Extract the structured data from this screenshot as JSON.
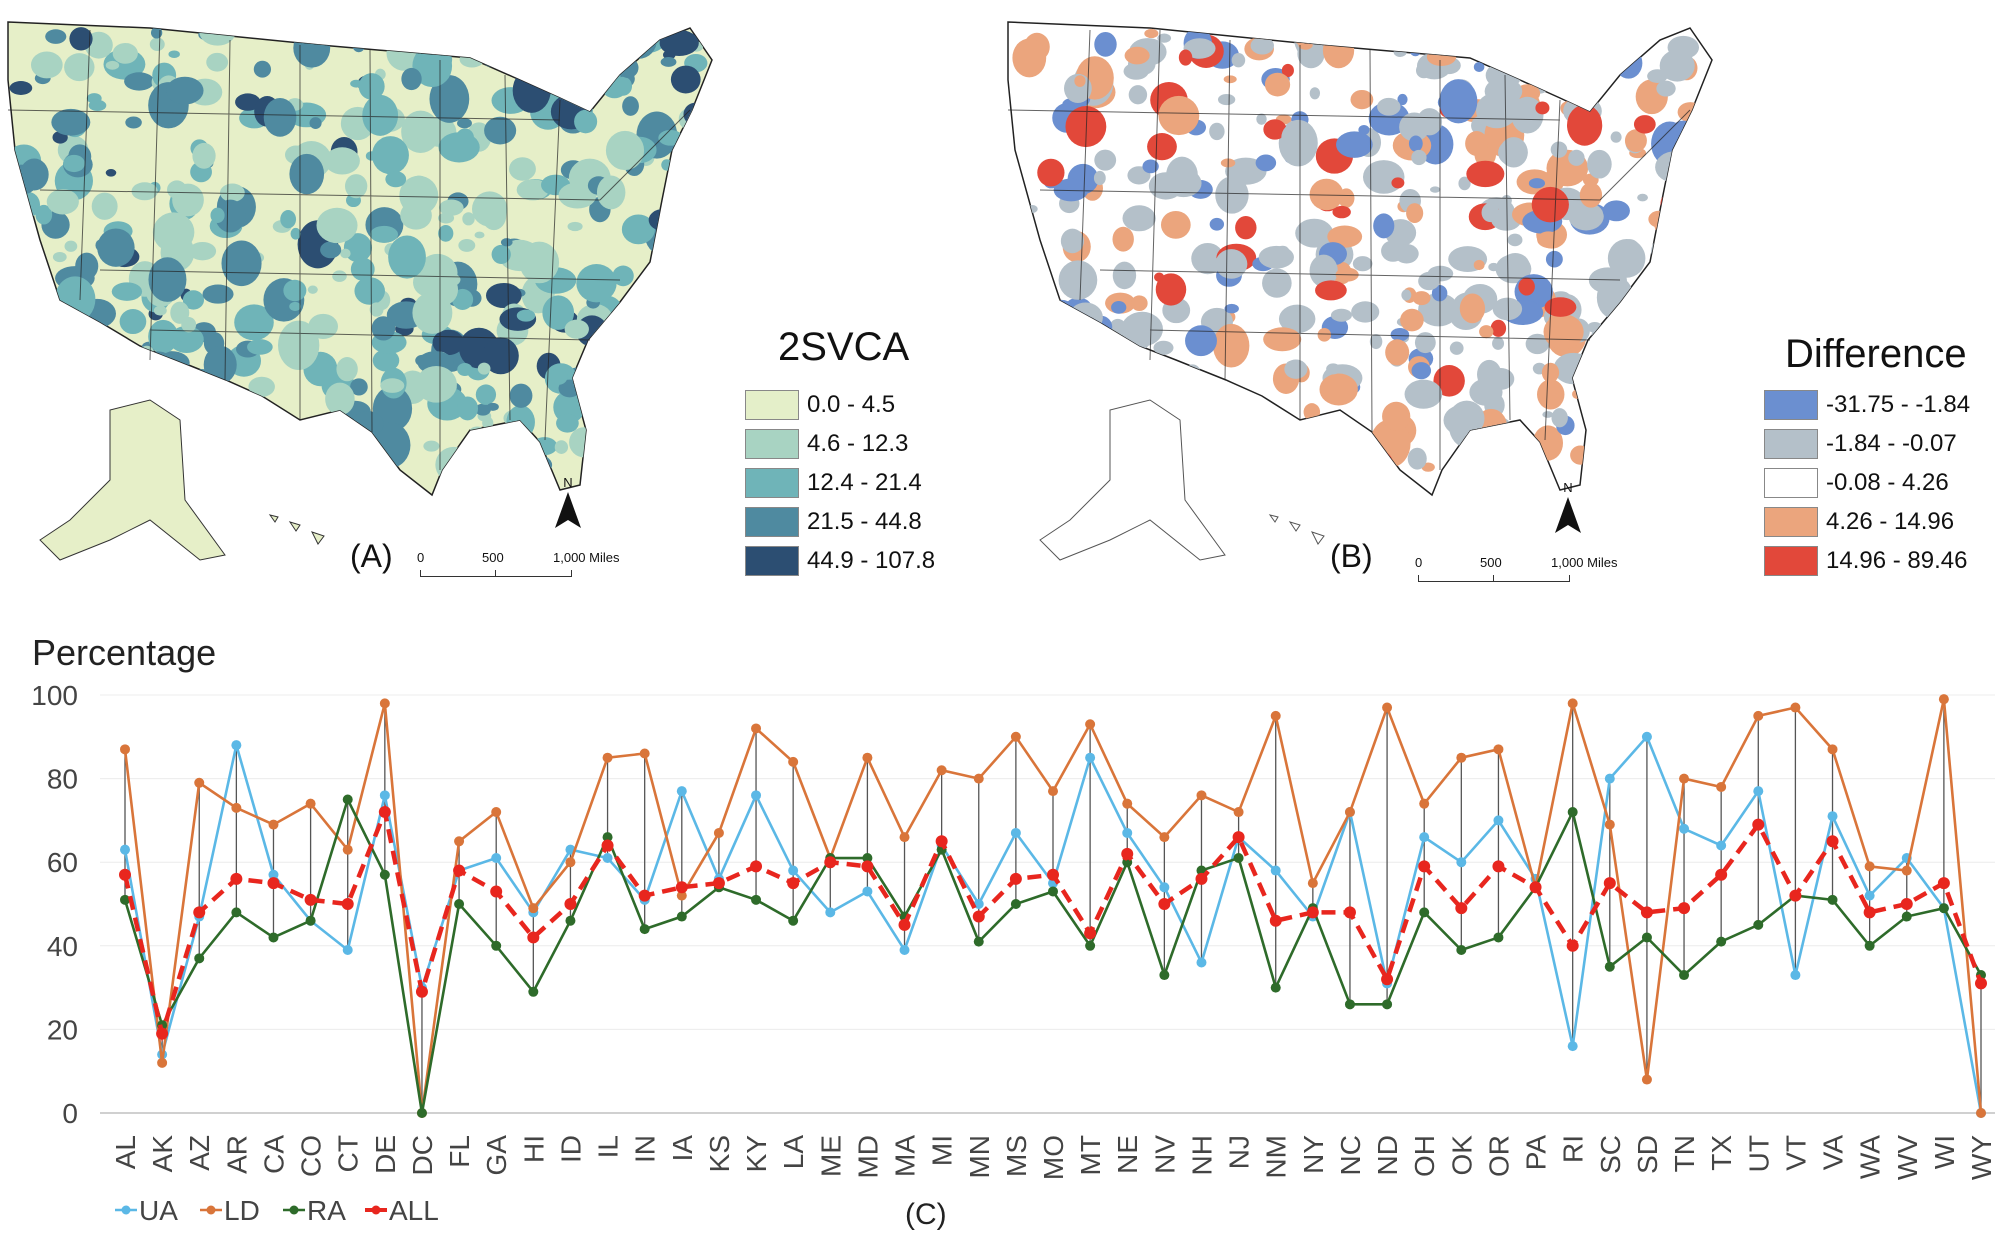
{
  "map_a": {
    "title": "2SVCA",
    "panel_label": "(A)",
    "legend": [
      {
        "label": "0.0 - 4.5",
        "color": "#e4efc9"
      },
      {
        "label": "4.6 - 12.3",
        "color": "#a8d3c2"
      },
      {
        "label": "12.4 - 21.4",
        "color": "#6fb4b8"
      },
      {
        "label": "21.5 - 44.8",
        "color": "#4f8aa0"
      },
      {
        "label": "44.9 - 107.8",
        "color": "#2c4e72"
      }
    ],
    "scale": {
      "t0": "0",
      "t1": "500",
      "t2": "1,000 Miles"
    },
    "north": "N"
  },
  "map_b": {
    "title": "Difference",
    "panel_label": "(B)",
    "legend": [
      {
        "label": "-31.75 - -1.84",
        "color": "#6b8fd0"
      },
      {
        "label": "-1.84 - -0.07",
        "color": "#b4c0c9"
      },
      {
        "label": "-0.08 - 4.26",
        "color": "#ffffff"
      },
      {
        "label": "4.26 - 14.96",
        "color": "#eba57d"
      },
      {
        "label": "14.96  - 89.46",
        "color": "#e2483a"
      }
    ],
    "scale": {
      "t0": "0",
      "t1": "500",
      "t2": "1,000 Miles"
    },
    "north": "N"
  },
  "chart_data": {
    "type": "line",
    "title": "",
    "ylabel": "Percentage",
    "xlabel": "",
    "panel_label": "(C)",
    "ylim": [
      0,
      100
    ],
    "yticks": [
      "0",
      "20",
      "40",
      "60",
      "80",
      "100"
    ],
    "grid": true,
    "legend_position": "bottom-left",
    "categories": [
      "AL",
      "AK",
      "AZ",
      "AR",
      "CA",
      "CO",
      "CT",
      "DE",
      "DC",
      "FL",
      "GA",
      "HI",
      "ID",
      "IL",
      "IN",
      "IA",
      "KS",
      "KY",
      "LA",
      "ME",
      "MD",
      "MA",
      "MI",
      "MN",
      "MS",
      "MO",
      "MT",
      "NE",
      "NV",
      "NH",
      "NJ",
      "NM",
      "NY",
      "NC",
      "ND",
      "OH",
      "OK",
      "OR",
      "PA",
      "RI",
      "SC",
      "SD",
      "TN",
      "TX",
      "UT",
      "VT",
      "VA",
      "WA",
      "WV",
      "WI",
      "WY"
    ],
    "series": [
      {
        "name": "UA",
        "color": "#5bb8e6",
        "dashed": false,
        "values": [
          63,
          14,
          47,
          88,
          57,
          46,
          39,
          76,
          30,
          58,
          61,
          48,
          63,
          61,
          51,
          77,
          56,
          76,
          58,
          48,
          53,
          39,
          64,
          50,
          67,
          55,
          85,
          67,
          54,
          36,
          66,
          58,
          47,
          72,
          31,
          66,
          60,
          70,
          56,
          16,
          80,
          90,
          68,
          64,
          77,
          33,
          71,
          52,
          61,
          49,
          0
        ]
      },
      {
        "name": "LD",
        "color": "#d9753a",
        "dashed": false,
        "values": [
          87,
          12,
          79,
          73,
          69,
          74,
          63,
          98,
          0,
          65,
          72,
          49,
          60,
          85,
          86,
          52,
          67,
          92,
          84,
          61,
          85,
          66,
          82,
          80,
          90,
          77,
          93,
          74,
          66,
          76,
          72,
          95,
          55,
          72,
          97,
          74,
          85,
          87,
          54,
          98,
          69,
          8,
          80,
          78,
          95,
          97,
          87,
          59,
          58,
          99,
          0
        ]
      },
      {
        "name": "RA",
        "color": "#2e6b2a",
        "dashed": false,
        "values": [
          51,
          21,
          37,
          48,
          42,
          46,
          75,
          57,
          0,
          50,
          40,
          29,
          46,
          66,
          44,
          47,
          54,
          51,
          46,
          61,
          61,
          47,
          63,
          41,
          50,
          53,
          40,
          60,
          33,
          58,
          61,
          30,
          49,
          26,
          26,
          48,
          39,
          42,
          54,
          72,
          35,
          42,
          33,
          41,
          45,
          52,
          51,
          40,
          47,
          49,
          33
        ]
      },
      {
        "name": "ALL",
        "color": "#e8261e",
        "dashed": true,
        "values": [
          57,
          19,
          48,
          56,
          55,
          51,
          50,
          72,
          29,
          58,
          53,
          42,
          50,
          64,
          52,
          54,
          55,
          59,
          55,
          60,
          59,
          45,
          65,
          47,
          56,
          57,
          43,
          62,
          50,
          56,
          66,
          46,
          48,
          48,
          32,
          59,
          49,
          59,
          54,
          40,
          55,
          48,
          49,
          57,
          69,
          52,
          65,
          48,
          50,
          55,
          31
        ]
      }
    ]
  }
}
